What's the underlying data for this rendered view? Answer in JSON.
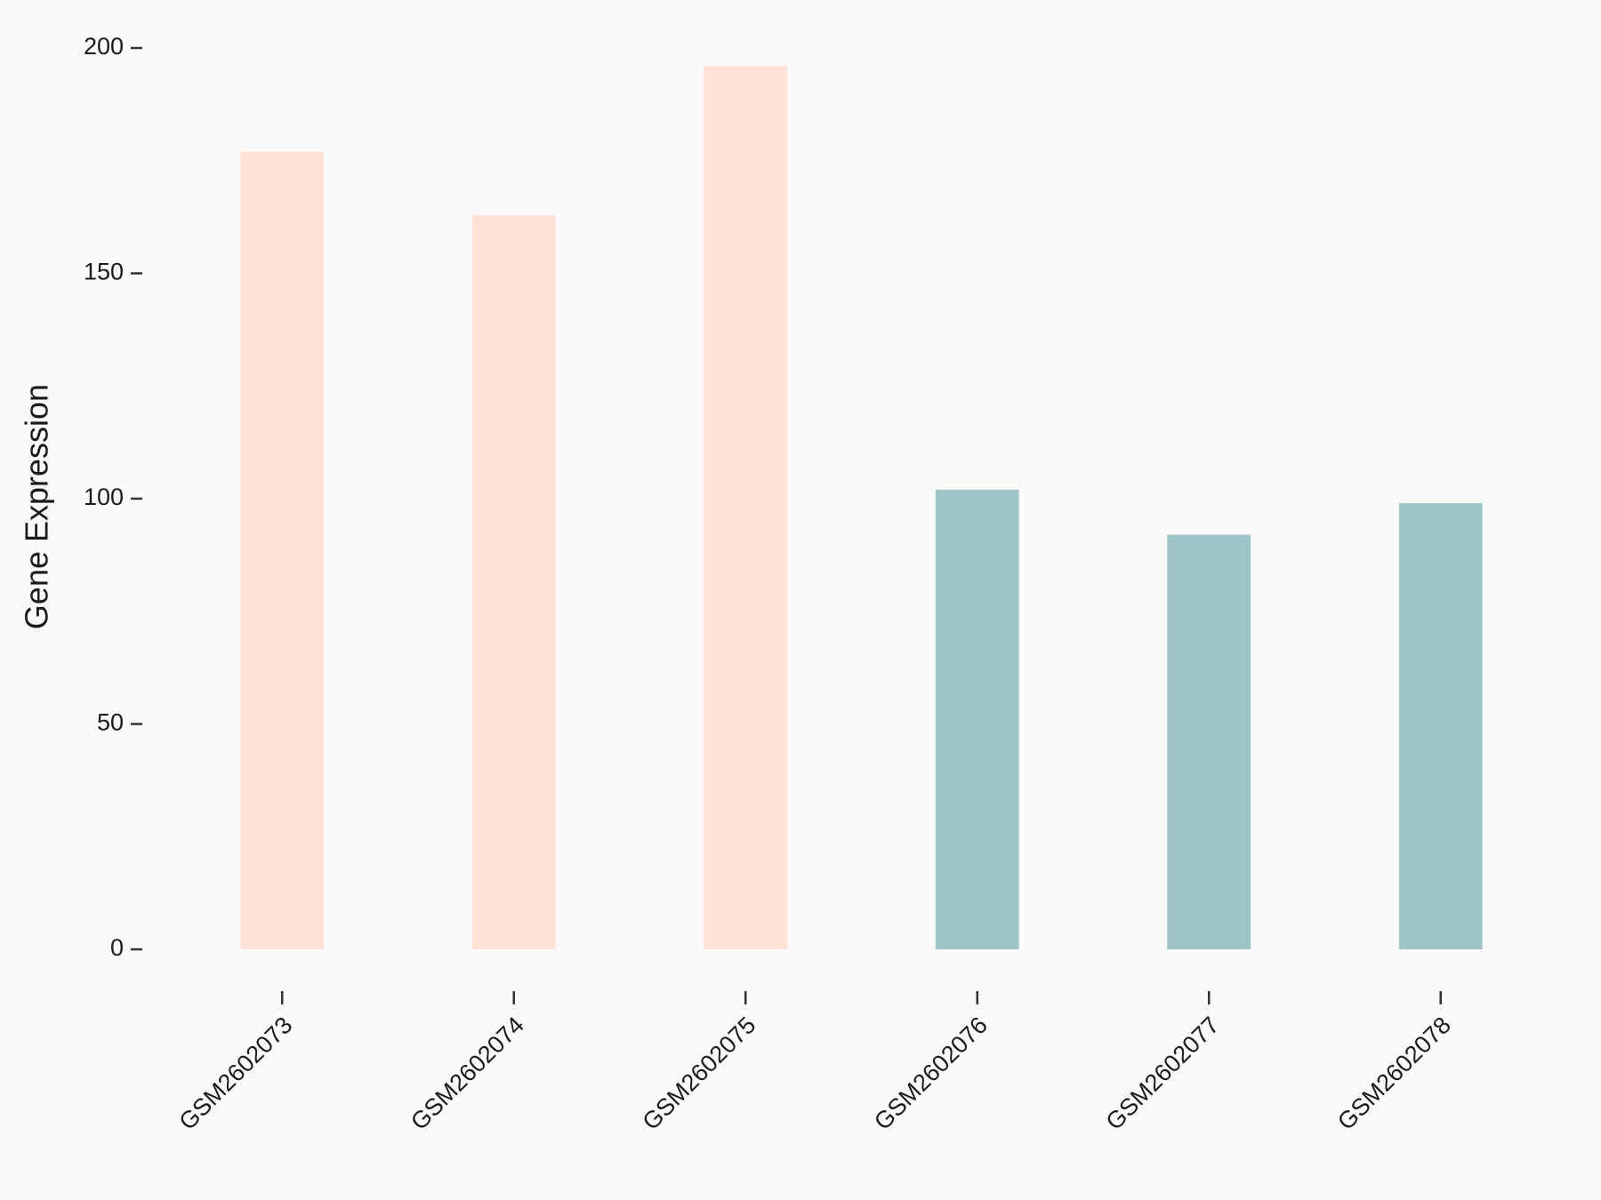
{
  "chart_data": {
    "type": "bar",
    "y_label": "Gene Expression",
    "categories": [
      "GSM2602073",
      "GSM2602074",
      "GSM2602075",
      "GSM2602076",
      "GSM2602077",
      "GSM2602078"
    ],
    "values": [
      177,
      163,
      196,
      102,
      92,
      99
    ],
    "colors": [
      "#ffe1d8",
      "#ffe1d8",
      "#ffe1d8",
      "#9fc4c8",
      "#9fc4c8",
      "#9fc4c8"
    ],
    "ylim": [
      0,
      200
    ],
    "yticks": [
      0,
      50,
      100,
      150,
      200
    ]
  }
}
